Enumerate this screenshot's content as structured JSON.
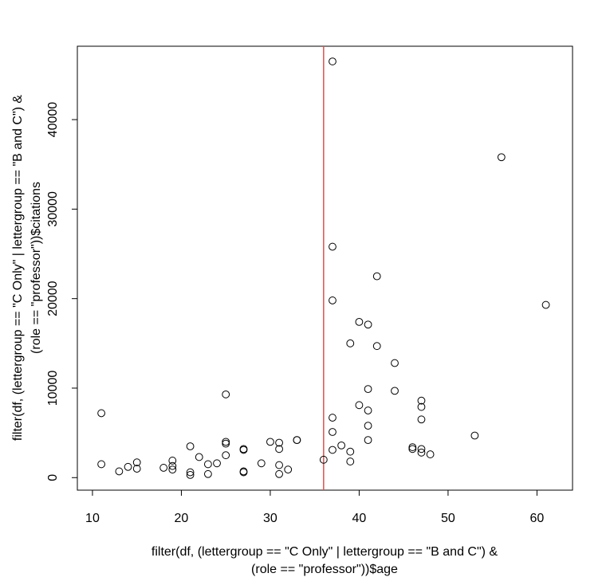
{
  "chart_data": {
    "type": "scatter",
    "xlabel": [
      "filter(df, (lettergroup == \"C Only\" | lettergroup == \"B and C\") &",
      "(role == \"professor\"))$age"
    ],
    "ylabel": [
      "filter(df, (lettergroup == \"C Only\" | lettergroup == \"B and C\") &",
      "(role == \"professor\"))$citations"
    ],
    "xlim": [
      8.3,
      64.0
    ],
    "ylim": [
      -1400,
      48200
    ],
    "xticks": [
      10,
      20,
      30,
      40,
      50,
      60
    ],
    "yticks": [
      0,
      10000,
      20000,
      30000,
      40000
    ],
    "vline": {
      "x": 36,
      "color": "#d9534f"
    },
    "point_style": {
      "shape": "open-circle",
      "color": "#000000"
    },
    "x": [
      11,
      11,
      13,
      14,
      15,
      15,
      18,
      19,
      19,
      19,
      21,
      21,
      21,
      22,
      23,
      23,
      24,
      25,
      25,
      25,
      25,
      27,
      27,
      27,
      27,
      29,
      30,
      31,
      31,
      31,
      31,
      32,
      33,
      33,
      36,
      37,
      37,
      37,
      37,
      37,
      37,
      38,
      39,
      39,
      39,
      40,
      40,
      41,
      41,
      41,
      41,
      41,
      42,
      42,
      44,
      44,
      46,
      46,
      47,
      47,
      47,
      47,
      47,
      48,
      53,
      56,
      61
    ],
    "y": [
      7200,
      1500,
      700,
      1200,
      1000,
      1700,
      1100,
      1300,
      1900,
      900,
      3500,
      600,
      300,
      2300,
      1500,
      400,
      1600,
      9300,
      3800,
      4000,
      2500,
      3200,
      3100,
      700,
      600,
      1600,
      4000,
      3900,
      3200,
      1400,
      400,
      900,
      4200,
      4200,
      2000,
      46500,
      25800,
      19800,
      6700,
      5100,
      3100,
      3600,
      15000,
      2900,
      1800,
      17400,
      8100,
      17100,
      9900,
      7500,
      5800,
      4200,
      22500,
      14700,
      12800,
      9700,
      3400,
      3200,
      8600,
      7900,
      6500,
      3200,
      2800,
      2600,
      4700,
      35800,
      19300
    ]
  }
}
